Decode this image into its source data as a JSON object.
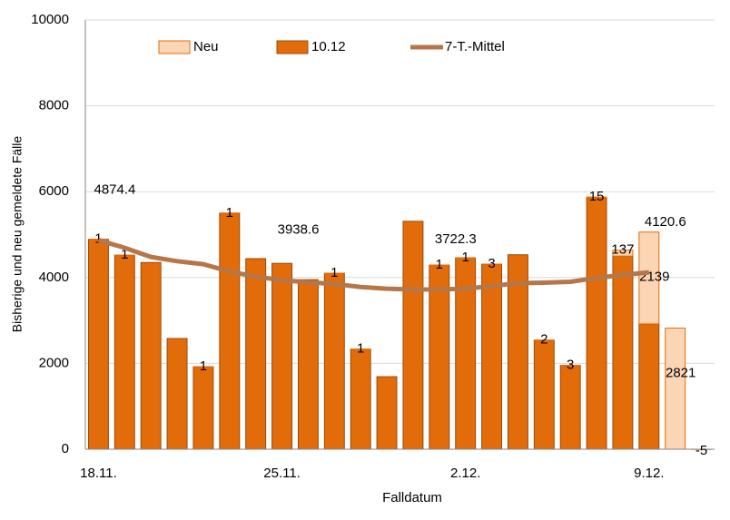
{
  "chart_data": {
    "type": "bar",
    "x_label": "Falldatum",
    "y_label": "Bisherige und neu gemeldete Fälle",
    "categories": [
      "18.11.",
      null,
      null,
      null,
      null,
      null,
      null,
      "25.11.",
      null,
      null,
      null,
      null,
      null,
      null,
      "2.12.",
      null,
      null,
      null,
      null,
      null,
      null,
      "9.12.",
      null,
      null
    ],
    "stacked": true,
    "series": [
      {
        "name": "10.12",
        "type": "bar",
        "color": "#e36c0a",
        "stroke": "#9c4a0a",
        "values": [
          4890,
          4520,
          4350,
          2580,
          1920,
          5500,
          4440,
          4330,
          3950,
          4100,
          2330,
          1690,
          5310,
          4290,
          4460,
          4310,
          4530,
          2540,
          1950,
          5860,
          4500,
          2920,
          0,
          0
        ]
      },
      {
        "name": "Neu",
        "type": "bar",
        "color": "#fcd5b4",
        "stroke": "#e36c0a",
        "values": [
          1,
          1,
          null,
          null,
          1,
          1,
          null,
          null,
          null,
          1,
          1,
          null,
          null,
          1,
          1,
          3,
          null,
          2,
          3,
          15,
          137,
          2139,
          2821,
          -5
        ]
      },
      {
        "name": "7-T.-Mittel",
        "type": "line",
        "color": "#b5774a",
        "values": [
          4874.4,
          4690,
          4480,
          4380,
          4310,
          4140,
          4020,
          3938.6,
          3890,
          3850,
          3780,
          3740,
          3720,
          3722.3,
          3740,
          3800,
          3870,
          3880,
          3900,
          3990,
          4060,
          4120.6,
          null,
          null
        ],
        "value_labels": [
          "4874.4",
          null,
          null,
          null,
          null,
          null,
          null,
          "3938.6",
          null,
          null,
          null,
          null,
          null,
          "3722.3",
          null,
          null,
          null,
          null,
          null,
          null,
          null,
          "4120.6",
          null,
          null
        ]
      }
    ],
    "ylim": [
      0,
      10000
    ],
    "yticks": [
      0,
      2000,
      4000,
      6000,
      8000,
      10000
    ],
    "grid": true,
    "legend": "top"
  }
}
